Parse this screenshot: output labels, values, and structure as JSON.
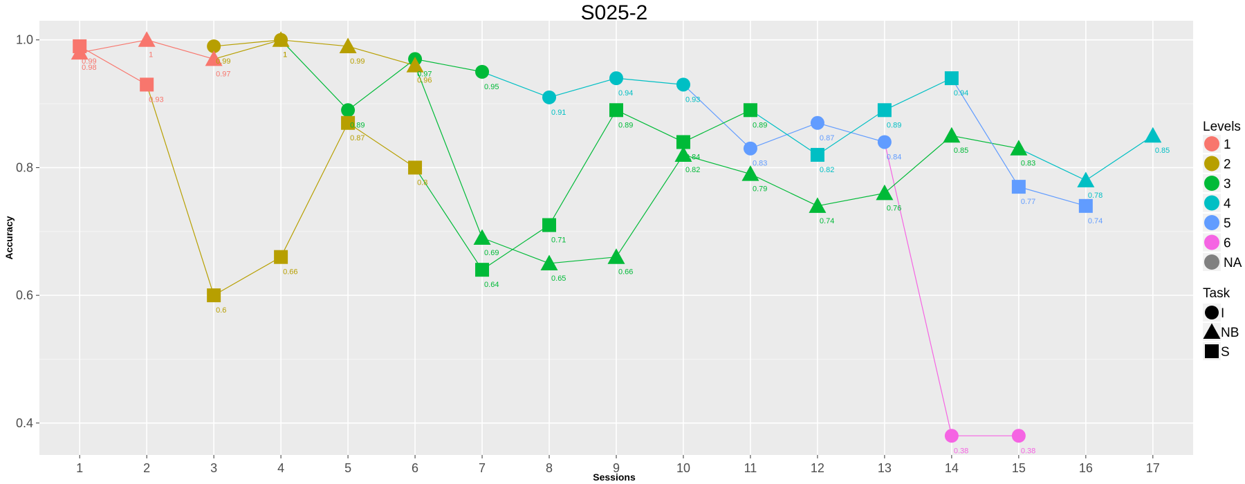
{
  "chart_data": {
    "type": "scatter",
    "title": "S025-2",
    "xlabel": "Sessions",
    "ylabel": "Accuracy",
    "xlim": [
      0.4,
      17.6
    ],
    "ylim": [
      0.35,
      1.03
    ],
    "x_ticks": [
      1,
      2,
      3,
      4,
      5,
      6,
      7,
      8,
      9,
      10,
      11,
      12,
      13,
      14,
      15,
      16,
      17
    ],
    "y_ticks": [
      0.4,
      0.6,
      0.8,
      1.0
    ],
    "y_tick_labels": [
      "0.4",
      "0.6",
      "0.8",
      "1.0"
    ],
    "grid": true,
    "legend_position": "right",
    "level_colors": {
      "1": "#F8766D",
      "2": "#B79F00",
      "3": "#00BA38",
      "4": "#00BFC4",
      "5": "#619CFF",
      "6": "#F564E3",
      "NA": "#808080"
    },
    "legend": {
      "levels_title": "Levels",
      "levels": [
        {
          "label": "1",
          "color": "#F8766D"
        },
        {
          "label": "2",
          "color": "#B79F00"
        },
        {
          "label": "3",
          "color": "#00BA38"
        },
        {
          "label": "4",
          "color": "#00BFC4"
        },
        {
          "label": "5",
          "color": "#619CFF"
        },
        {
          "label": "6",
          "color": "#F564E3"
        },
        {
          "label": "NA",
          "color": "#808080"
        }
      ],
      "task_title": "Task",
      "tasks": [
        {
          "label": "I",
          "shape": "circle"
        },
        {
          "label": "NB",
          "shape": "triangle"
        },
        {
          "label": "S",
          "shape": "square"
        }
      ]
    },
    "series": [
      {
        "task": "I",
        "shape": "circle",
        "points": [
          {
            "x": 3,
            "y": 0.99,
            "level": "2",
            "label": "0.99"
          },
          {
            "x": 4,
            "y": 1.0,
            "level": "2",
            "label": "1"
          },
          {
            "x": 5,
            "y": 0.89,
            "level": "3",
            "label": "0.89"
          },
          {
            "x": 6,
            "y": 0.97,
            "level": "3",
            "label": "0.97"
          },
          {
            "x": 7,
            "y": 0.95,
            "level": "3",
            "label": "0.95"
          },
          {
            "x": 8,
            "y": 0.91,
            "level": "4",
            "label": "0.91"
          },
          {
            "x": 9,
            "y": 0.94,
            "level": "4",
            "label": "0.94"
          },
          {
            "x": 10,
            "y": 0.93,
            "level": "4",
            "label": "0.93"
          },
          {
            "x": 11,
            "y": 0.83,
            "level": "5",
            "label": "0.83"
          },
          {
            "x": 12,
            "y": 0.87,
            "level": "5",
            "label": "0.87"
          },
          {
            "x": 13,
            "y": 0.84,
            "level": "5",
            "label": "0.84"
          },
          {
            "x": 14,
            "y": 0.38,
            "level": "6",
            "label": "0.38"
          },
          {
            "x": 15,
            "y": 0.38,
            "level": "6",
            "label": "0.38"
          }
        ]
      },
      {
        "task": "NB",
        "shape": "triangle",
        "points": [
          {
            "x": 1,
            "y": 0.98,
            "level": "1",
            "label": "0.98"
          },
          {
            "x": 2,
            "y": 1.0,
            "level": "1",
            "label": "1"
          },
          {
            "x": 3,
            "y": 0.97,
            "level": "1",
            "label": "0.97"
          },
          {
            "x": 4,
            "y": 1.0,
            "level": "2",
            "label": "1"
          },
          {
            "x": 5,
            "y": 0.99,
            "level": "2",
            "label": "0.99"
          },
          {
            "x": 6,
            "y": 0.96,
            "level": "2",
            "label": "0.96"
          },
          {
            "x": 7,
            "y": 0.69,
            "level": "3",
            "label": "0.69"
          },
          {
            "x": 8,
            "y": 0.65,
            "level": "3",
            "label": "0.65"
          },
          {
            "x": 9,
            "y": 0.66,
            "level": "3",
            "label": "0.66"
          },
          {
            "x": 10,
            "y": 0.82,
            "level": "3",
            "label": "0.82"
          },
          {
            "x": 11,
            "y": 0.79,
            "level": "3",
            "label": "0.79"
          },
          {
            "x": 12,
            "y": 0.74,
            "level": "3",
            "label": "0.74"
          },
          {
            "x": 13,
            "y": 0.76,
            "level": "3",
            "label": "0.76"
          },
          {
            "x": 14,
            "y": 0.85,
            "level": "3",
            "label": "0.85"
          },
          {
            "x": 15,
            "y": 0.83,
            "level": "3",
            "label": "0.83"
          },
          {
            "x": 16,
            "y": 0.78,
            "level": "4",
            "label": "0.78"
          },
          {
            "x": 17,
            "y": 0.85,
            "level": "4",
            "label": "0.85"
          }
        ]
      },
      {
        "task": "S",
        "shape": "square",
        "points": [
          {
            "x": 1,
            "y": 0.99,
            "level": "1",
            "label": "0.99"
          },
          {
            "x": 2,
            "y": 0.93,
            "level": "1",
            "label": "0.93"
          },
          {
            "x": 3,
            "y": 0.6,
            "level": "2",
            "label": "0.6"
          },
          {
            "x": 4,
            "y": 0.66,
            "level": "2",
            "label": "0.66"
          },
          {
            "x": 5,
            "y": 0.87,
            "level": "2",
            "label": "0.87"
          },
          {
            "x": 6,
            "y": 0.8,
            "level": "2",
            "label": "0.8"
          },
          {
            "x": 7,
            "y": 0.64,
            "level": "3",
            "label": "0.64"
          },
          {
            "x": 8,
            "y": 0.71,
            "level": "3",
            "label": "0.71"
          },
          {
            "x": 9,
            "y": 0.89,
            "level": "3",
            "label": "0.89"
          },
          {
            "x": 10,
            "y": 0.84,
            "level": "3",
            "label": "0.84"
          },
          {
            "x": 11,
            "y": 0.89,
            "level": "3",
            "label": "0.89"
          },
          {
            "x": 12,
            "y": 0.82,
            "level": "4",
            "label": "0.82"
          },
          {
            "x": 13,
            "y": 0.89,
            "level": "4",
            "label": "0.89"
          },
          {
            "x": 14,
            "y": 0.94,
            "level": "4",
            "label": "0.94"
          },
          {
            "x": 15,
            "y": 0.77,
            "level": "5",
            "label": "0.77"
          },
          {
            "x": 16,
            "y": 0.74,
            "level": "5",
            "label": "0.74"
          }
        ]
      }
    ]
  }
}
